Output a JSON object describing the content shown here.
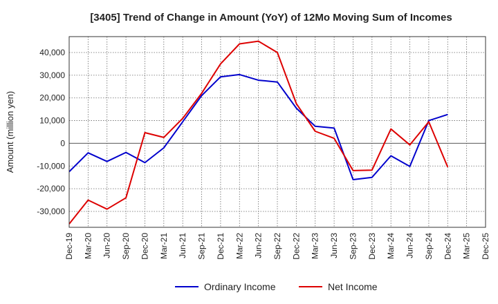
{
  "chart_data": {
    "type": "line",
    "title": "[3405]  Trend of Change in Amount (YoY) of 12Mo Moving Sum of Incomes",
    "xlabel": "",
    "ylabel": "Amount (million yen)",
    "ylim": [
      -37000,
      47000
    ],
    "yticks": [
      -30000,
      -20000,
      -10000,
      0,
      10000,
      20000,
      30000,
      40000
    ],
    "ytick_labels": [
      "-30,000",
      "-20,000",
      "-10,000",
      "0",
      "10,000",
      "20,000",
      "30,000",
      "40,000"
    ],
    "x": [
      "Dec-19",
      "Mar-20",
      "Jun-20",
      "Sep-20",
      "Dec-20",
      "Mar-21",
      "Jun-21",
      "Sep-21",
      "Dec-21",
      "Mar-22",
      "Jun-22",
      "Sep-22",
      "Dec-22",
      "Mar-23",
      "Jun-23",
      "Sep-23",
      "Dec-23",
      "Mar-24",
      "Jun-24",
      "Sep-24",
      "Dec-24",
      "Mar-25",
      "Dec-25"
    ],
    "grid": true,
    "legend_position": "bottom",
    "series": [
      {
        "name": "Ordinary Income",
        "color": "#0000cc",
        "values": [
          -12500,
          -4200,
          -8000,
          -4000,
          -8500,
          -2000,
          9500,
          21000,
          29300,
          30300,
          27800,
          27000,
          15500,
          7500,
          6700,
          -16000,
          -15000,
          -5500,
          -10200,
          10000,
          12700,
          null,
          null
        ]
      },
      {
        "name": "Net Income",
        "color": "#dd0000",
        "values": [
          -35500,
          -25000,
          -29000,
          -24000,
          4700,
          2600,
          11000,
          22000,
          35000,
          43800,
          45000,
          40000,
          17500,
          5300,
          2200,
          -12000,
          -11800,
          6300,
          -700,
          9500,
          -10500,
          null,
          null
        ]
      }
    ]
  }
}
